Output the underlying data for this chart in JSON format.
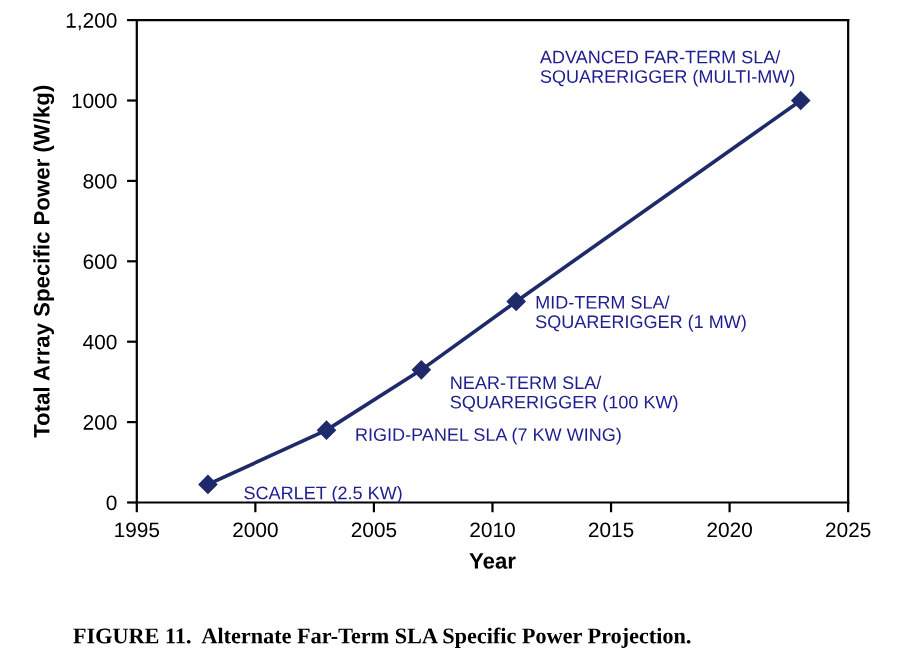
{
  "chart_data": {
    "type": "line",
    "xlabel": "Year",
    "ylabel": "Total Array Specific Power (W/kg)",
    "x": [
      1998,
      2003,
      2007,
      2011,
      2023
    ],
    "series": [
      {
        "color": "#1f2a6b",
        "values": [
          45,
          180,
          330,
          500,
          1000
        ]
      }
    ],
    "marker": "diamond",
    "line_style": "solid",
    "grid": false,
    "legend": false,
    "xlim": [
      1995,
      2025
    ],
    "xticks": [
      1995,
      2000,
      2005,
      2010,
      2015,
      2020,
      2025
    ],
    "ylim": [
      0,
      1200
    ],
    "yticks": [
      0,
      200,
      400,
      600,
      800,
      1000,
      {
        "value": 1200,
        "label": "1,200"
      }
    ],
    "annotations": [
      {
        "text": "SCARLET (2.5 KW)",
        "x": 1998,
        "y": 45
      },
      {
        "text": "RIGID-PANEL SLA (7 KW WING)",
        "x": 2003,
        "y": 180
      },
      {
        "text": "NEAR-TERM SLA/\nSQUARERIGGER (100 KW)",
        "x": 2007,
        "y": 330
      },
      {
        "text": "MID-TERM SLA/\nSQUARERIGGER (1 MW)",
        "x": 2011,
        "y": 500
      },
      {
        "text": "ADVANCED FAR-TERM SLA/\nSQUARERIGGER (MULTI-MW)",
        "x": 2023,
        "y": 1000
      },
      "FIGURE 11.  Alternate Far-Term SLA Specific Power Projection."
    ]
  }
}
